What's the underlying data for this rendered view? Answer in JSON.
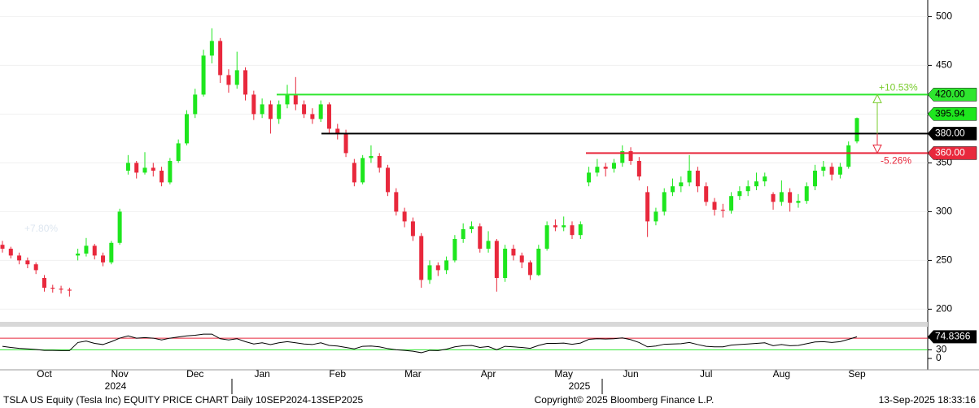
{
  "chart_data": [
    {
      "type": "candlestick",
      "categories": [
        null,
        null,
        null,
        null,
        null,
        "Oct",
        null,
        null,
        null,
        null,
        null,
        null,
        null,
        null,
        "Nov",
        null,
        null,
        null,
        null,
        null,
        null,
        null,
        null,
        "Dec",
        null,
        null,
        null,
        null,
        null,
        null,
        null,
        "Jan",
        null,
        null,
        null,
        null,
        null,
        null,
        null,
        null,
        "Feb",
        null,
        null,
        null,
        null,
        null,
        null,
        null,
        null,
        "Mar",
        null,
        null,
        null,
        null,
        null,
        null,
        null,
        null,
        "Apr",
        null,
        null,
        null,
        null,
        null,
        null,
        null,
        null,
        "May",
        null,
        null,
        null,
        null,
        null,
        null,
        null,
        "Jun",
        null,
        null,
        null,
        null,
        null,
        null,
        null,
        null,
        "Jul",
        null,
        null,
        null,
        null,
        null,
        null,
        null,
        null,
        "Aug",
        null,
        null,
        null,
        null,
        null,
        null,
        null,
        null,
        "Sep"
      ],
      "x_year_labels": [
        "2024",
        "2025"
      ],
      "open": [
        266,
        262,
        255,
        250,
        246,
        232,
        222,
        221,
        220,
        255,
        257,
        265,
        255,
        248,
        268,
        342,
        350,
        340,
        345,
        342,
        330,
        352,
        370,
        400,
        420,
        460,
        475,
        440,
        430,
        445,
        420,
        400,
        410,
        395,
        410,
        420,
        410,
        400,
        395,
        410,
        385,
        380,
        350,
        330,
        355,
        357,
        345,
        320,
        300,
        290,
        275,
        230,
        245,
        240,
        250,
        272,
        282,
        285,
        262,
        270,
        232,
        262,
        255,
        248,
        235,
        262,
        286,
        284,
        286,
        276,
        330,
        340,
        346,
        344,
        350,
        362,
        352,
        320,
        290,
        300,
        320,
        326,
        330,
        342,
        326,
        310,
        302,
        301,
        316,
        321,
        326,
        331,
        318,
        310,
        320,
        309,
        311,
        326,
        342,
        346,
        338,
        346,
        372
      ],
      "high": [
        270,
        264,
        258,
        253,
        248,
        235,
        225,
        224,
        222,
        262,
        273,
        267,
        258,
        270,
        303,
        358,
        352,
        361,
        350,
        346,
        355,
        374,
        404,
        426,
        466,
        488,
        478,
        446,
        464,
        448,
        424,
        416,
        414,
        414,
        430,
        438,
        414,
        406,
        414,
        412,
        390,
        384,
        354,
        358,
        368,
        360,
        348,
        324,
        304,
        294,
        278,
        250,
        248,
        254,
        276,
        288,
        290,
        288,
        280,
        272,
        266,
        266,
        258,
        250,
        266,
        290,
        292,
        295,
        290,
        290,
        346,
        354,
        350,
        354,
        368,
        366,
        356,
        326,
        304,
        324,
        334,
        336,
        358,
        346,
        330,
        314,
        308,
        320,
        326,
        332,
        340,
        340,
        320,
        332,
        324,
        318,
        330,
        348,
        352,
        350,
        350,
        372,
        396.5
      ],
      "low": [
        258,
        252,
        246,
        242,
        236,
        218,
        217,
        216,
        213,
        250,
        254,
        251,
        244,
        246,
        266,
        338,
        334,
        338,
        336,
        326,
        328,
        350,
        368,
        396,
        418,
        452,
        432,
        422,
        426,
        414,
        394,
        396,
        380,
        390,
        406,
        404,
        396,
        390,
        392,
        380,
        374,
        356,
        326,
        328,
        350,
        340,
        316,
        296,
        284,
        270,
        222,
        226,
        234,
        236,
        248,
        268,
        278,
        258,
        258,
        218,
        228,
        250,
        242,
        230,
        234,
        260,
        280,
        280,
        272,
        272,
        326,
        336,
        336,
        340,
        346,
        348,
        332,
        274,
        286,
        296,
        316,
        320,
        326,
        320,
        306,
        296,
        294,
        298,
        312,
        316,
        322,
        326,
        302,
        306,
        300,
        304,
        308,
        322,
        336,
        332,
        334,
        344,
        370
      ],
      "close": [
        262,
        255,
        250,
        246,
        240,
        222,
        221,
        220,
        219,
        257,
        265,
        255,
        248,
        268,
        300,
        350,
        340,
        345,
        342,
        330,
        352,
        370,
        400,
        420,
        460,
        475,
        440,
        430,
        445,
        420,
        400,
        410,
        395,
        410,
        420,
        410,
        400,
        395,
        410,
        385,
        380,
        360,
        330,
        355,
        357,
        345,
        320,
        300,
        290,
        275,
        230,
        245,
        240,
        250,
        272,
        282,
        285,
        262,
        270,
        232,
        262,
        255,
        248,
        235,
        262,
        286,
        284,
        286,
        276,
        287,
        340,
        346,
        344,
        350,
        362,
        352,
        336,
        290,
        300,
        320,
        326,
        330,
        342,
        326,
        310,
        302,
        301,
        316,
        321,
        326,
        331,
        336,
        310,
        320,
        309,
        311,
        326,
        342,
        346,
        338,
        346,
        368,
        395.94
      ],
      "up_color": "#1ee61e",
      "down_color": "#e8283c",
      "ylim": [
        187,
        517
      ],
      "yticks": [
        200,
        250,
        300,
        350,
        400,
        450,
        500
      ],
      "grid": true,
      "levels": [
        {
          "value": 420,
          "label": "420.00",
          "color": "#2ee62e"
        },
        {
          "value": 380,
          "label": "380.00",
          "color": "#000000"
        },
        {
          "value": 360,
          "label": "360.00",
          "color": "#e8283c"
        }
      ],
      "last_price": {
        "value": 395.94,
        "label": "395.94"
      },
      "annotations": {
        "up": "+10.53%",
        "down": "-5.26%",
        "faded": "+7.80%"
      },
      "footer": {
        "left": "TSLA US Equity (Tesla Inc) EQUITY PRICE CHART  Daily 10SEP2024-13SEP2025",
        "center": "Copyright© 2025 Bloomberg Finance L.P.",
        "right": "13-Sep-2025 18:33:16"
      }
    },
    {
      "type": "line",
      "values": [
        42,
        38,
        35,
        33,
        31,
        28,
        28,
        27,
        27,
        55,
        60,
        52,
        48,
        58,
        70,
        78,
        70,
        72,
        70,
        64,
        70,
        74,
        78,
        80,
        84,
        84,
        68,
        64,
        68,
        58,
        50,
        54,
        48,
        54,
        58,
        54,
        50,
        48,
        54,
        45,
        43,
        38,
        33,
        42,
        43,
        40,
        34,
        30,
        28,
        25,
        20,
        28,
        27,
        32,
        40,
        44,
        45,
        38,
        41,
        30,
        42,
        40,
        38,
        35,
        45,
        52,
        52,
        53,
        49,
        53,
        66,
        68,
        67,
        68,
        71,
        65,
        55,
        40,
        43,
        49,
        50,
        51,
        55,
        48,
        42,
        40,
        40,
        46,
        48,
        50,
        52,
        54,
        44,
        48,
        44,
        45,
        51,
        57,
        58,
        55,
        58,
        66,
        74.8366
      ],
      "color": "#000000",
      "ylim": [
        -25,
        115
      ],
      "yticks": [
        0,
        30,
        70
      ],
      "bands": [
        {
          "value": 70,
          "color": "#e8283c"
        },
        {
          "value": 30,
          "color": "#2ee62e"
        }
      ],
      "last_value": 74.8366
    }
  ]
}
